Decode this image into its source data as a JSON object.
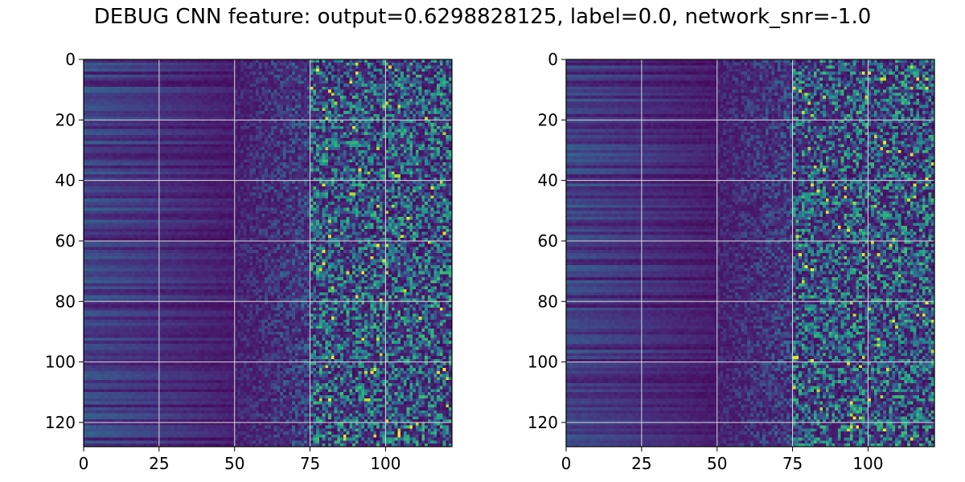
{
  "figure": {
    "title": "DEBUG CNN feature: output=0.6298828125, label=0.0, network_snr=-1.0"
  },
  "chart_data": [
    {
      "type": "heatmap",
      "title": "",
      "xlabel": "",
      "ylabel": "",
      "rows": 128,
      "cols": 122,
      "xlim": [
        0,
        122
      ],
      "ylim": [
        128,
        0
      ],
      "x_ticks": [
        0,
        25,
        50,
        75,
        100
      ],
      "y_ticks": [
        0,
        20,
        40,
        60,
        80,
        100,
        120
      ],
      "grid": true,
      "colormap": "viridis",
      "seed": 7
    },
    {
      "type": "heatmap",
      "title": "",
      "xlabel": "",
      "ylabel": "",
      "rows": 128,
      "cols": 122,
      "xlim": [
        0,
        122
      ],
      "ylim": [
        128,
        0
      ],
      "x_ticks": [
        0,
        25,
        50,
        75,
        100
      ],
      "y_ticks": [
        0,
        20,
        40,
        60,
        80,
        100,
        120
      ],
      "grid": true,
      "colormap": "viridis",
      "seed": 19
    }
  ]
}
